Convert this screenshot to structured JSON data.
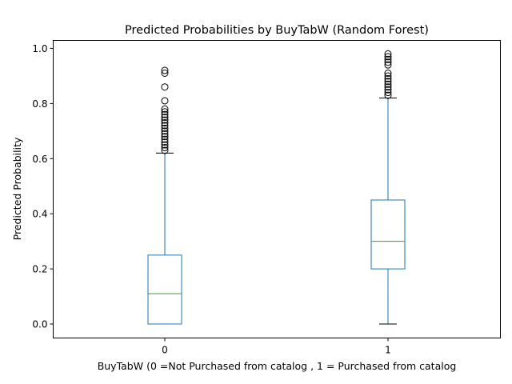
{
  "chart_data": {
    "type": "box",
    "title": "Predicted Probabilities by BuyTabW (Random Forest)",
    "xlabel": "BuyTabW (0 =Not Purchased from catalog  , 1 = Purchased from catalog",
    "ylabel": "Predicted Probability",
    "categories": [
      "0",
      "1"
    ],
    "ylim": [
      -0.05,
      1.03
    ],
    "yticks": [
      "0.0",
      "0.2",
      "0.4",
      "0.6",
      "0.8",
      "1.0"
    ],
    "grid": false,
    "colors": {
      "box": "#1f77b4",
      "median": "#2ca02c",
      "whisker_cap": "#000000",
      "flier": "#000000"
    },
    "boxes": [
      {
        "category": "0",
        "whisker_low": 0.0,
        "q1": 0.0,
        "median": 0.11,
        "q3": 0.25,
        "whisker_high": 0.62,
        "outliers": [
          0.63,
          0.64,
          0.65,
          0.66,
          0.67,
          0.68,
          0.69,
          0.7,
          0.71,
          0.72,
          0.73,
          0.74,
          0.75,
          0.76,
          0.77,
          0.78,
          0.81,
          0.86,
          0.91,
          0.92
        ]
      },
      {
        "category": "1",
        "whisker_low": 0.0,
        "q1": 0.2,
        "median": 0.3,
        "q3": 0.45,
        "whisker_high": 0.82,
        "outliers": [
          0.83,
          0.84,
          0.85,
          0.86,
          0.87,
          0.88,
          0.89,
          0.9,
          0.91,
          0.94,
          0.95,
          0.96,
          0.97,
          0.98
        ]
      }
    ]
  }
}
